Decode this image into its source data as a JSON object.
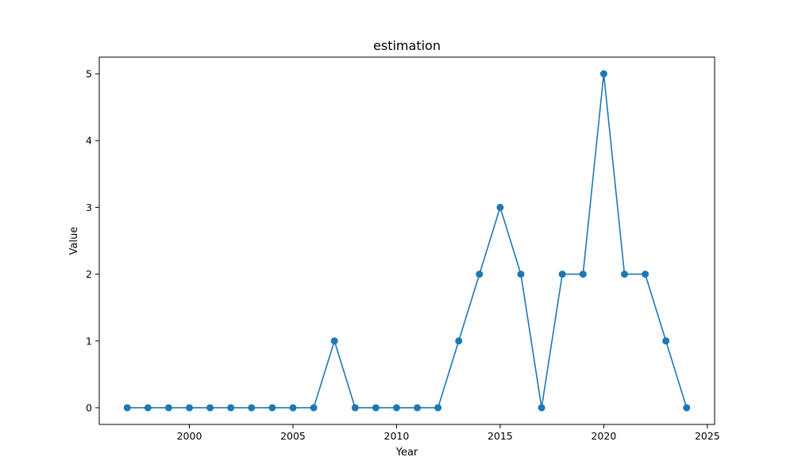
{
  "chart_data": {
    "type": "line",
    "title": "estimation",
    "xlabel": "Year",
    "ylabel": "Value",
    "xlim": [
      1995.65,
      2025.35
    ],
    "ylim": [
      -0.25,
      5.25
    ],
    "xticks": [
      2000,
      2005,
      2010,
      2015,
      2020,
      2025
    ],
    "yticks": [
      0,
      1,
      2,
      3,
      4,
      5
    ],
    "grid": false,
    "series": [
      {
        "color": "#1f77b4",
        "marker": "circle",
        "x": [
          1997,
          1998,
          1999,
          2000,
          2001,
          2002,
          2003,
          2004,
          2005,
          2006,
          2007,
          2008,
          2009,
          2010,
          2011,
          2012,
          2013,
          2014,
          2015,
          2016,
          2017,
          2018,
          2019,
          2020,
          2021,
          2022,
          2023,
          2024
        ],
        "y": [
          0,
          0,
          0,
          0,
          0,
          0,
          0,
          0,
          0,
          0,
          1,
          0,
          0,
          0,
          0,
          0,
          1,
          2,
          3,
          2,
          0,
          2,
          2,
          5,
          2,
          2,
          1,
          0
        ]
      }
    ]
  }
}
